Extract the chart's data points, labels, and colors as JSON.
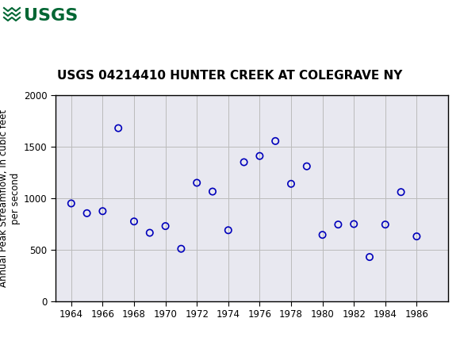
{
  "title": "USGS 04214410 HUNTER CREEK AT COLEGRAVE NY",
  "ylabel": "Annual Peak Streamflow, in cubic feet\nper second",
  "years": [
    1964,
    1965,
    1966,
    1967,
    1968,
    1969,
    1970,
    1971,
    1972,
    1973,
    1974,
    1975,
    1976,
    1977,
    1978,
    1979,
    1980,
    1981,
    1982,
    1983,
    1984,
    1985,
    1986
  ],
  "values": [
    950,
    855,
    875,
    1680,
    775,
    665,
    730,
    510,
    1150,
    1065,
    690,
    1350,
    1410,
    1555,
    1140,
    1310,
    645,
    745,
    750,
    430,
    745,
    1060,
    630
  ],
  "xlim": [
    1963,
    1988
  ],
  "ylim": [
    0,
    2000
  ],
  "xticks": [
    1964,
    1966,
    1968,
    1970,
    1972,
    1974,
    1976,
    1978,
    1980,
    1982,
    1984,
    1986
  ],
  "yticks": [
    0,
    500,
    1000,
    1500,
    2000
  ],
  "marker_color": "#0000bb",
  "marker_size": 6,
  "grid_color": "#bbbbbb",
  "bg_color": "#ffffff",
  "plot_bg_color": "#e8e8f0",
  "header_color": "#006633",
  "title_fontsize": 11,
  "ylabel_fontsize": 8.5
}
